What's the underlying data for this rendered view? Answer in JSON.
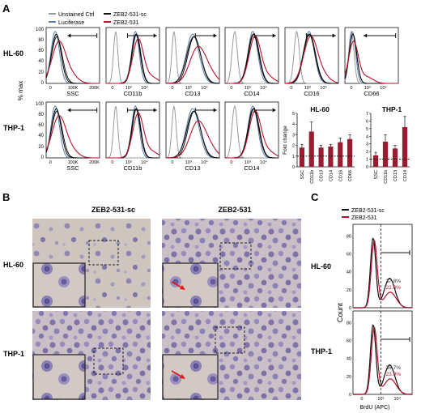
{
  "panels": {
    "A": {
      "label": "A",
      "legend": [
        "Unstained Ctrl",
        "Luciferase",
        "ZEB2-531-sc",
        "ZEB2-531"
      ],
      "rows": [
        {
          "label": "HL-60",
          "markers": [
            "SSC",
            "CD11b",
            "CD13",
            "CD14",
            "CD16",
            "CD66"
          ]
        },
        {
          "label": "THP-1",
          "markers": [
            "SSC",
            "CD11b",
            "CD13",
            "CD14"
          ]
        }
      ],
      "y_axis_label": "% max",
      "y_ticks": [
        "0",
        "20",
        "40",
        "60",
        "80",
        "100"
      ],
      "ssc_ticks": [
        "0",
        "100K",
        "200K"
      ],
      "log_ticks": [
        "0",
        "10³",
        "10⁴"
      ]
    },
    "B": {
      "label": "B",
      "col_headers": [
        "ZEB2-531-sc",
        "ZEB2-531"
      ],
      "row_labels": [
        "HL-60",
        "THP-1"
      ]
    },
    "C": {
      "label": "C",
      "legend": [
        "ZEB2-531-sc",
        "ZEB2-531"
      ],
      "rows": [
        {
          "label": "HL-60",
          "pct_sc": "37.8%",
          "pct_531": "22.3%"
        },
        {
          "label": "THP-1",
          "pct_sc": "36.7%",
          "pct_531": "23.9%"
        }
      ],
      "y_label": "Count",
      "x_label": "BrdU (APC)",
      "y_ticks": [
        "0",
        "20",
        "40",
        "60",
        "80"
      ],
      "x_ticks": [
        "0",
        "10³",
        "10⁴"
      ]
    }
  },
  "colors": {
    "unstained": "#9a9a9a",
    "luciferase": "#5a7fb0",
    "sc": "#111111",
    "z531": "#b3122d",
    "bar": "#9b1b30"
  },
  "chart_data": [
    {
      "type": "bar",
      "title": "HL-60",
      "ylabel": "Fold change",
      "categories": [
        "SSC",
        "CD11b",
        "CD13",
        "CD14",
        "CD16",
        "CD66"
      ],
      "values": [
        1.8,
        3.3,
        1.8,
        1.9,
        2.3,
        2.6
      ],
      "errors": [
        0.3,
        0.9,
        0.2,
        0.2,
        0.4,
        0.4
      ],
      "ylim": [
        0,
        5
      ],
      "yticks": [
        0,
        1,
        2,
        3,
        4,
        5
      ],
      "reference_line": 1
    },
    {
      "type": "bar",
      "title": "THP-1",
      "ylabel": "",
      "categories": [
        "SSC",
        "CD11b",
        "CD13",
        "CD14"
      ],
      "values": [
        1.5,
        3.3,
        2.4,
        5.2
      ],
      "errors": [
        0.4,
        0.9,
        0.4,
        1.4
      ],
      "ylim": [
        0,
        7
      ],
      "yticks": [
        0,
        1,
        2,
        3,
        4,
        5,
        6,
        7
      ],
      "reference_line": 1
    }
  ]
}
